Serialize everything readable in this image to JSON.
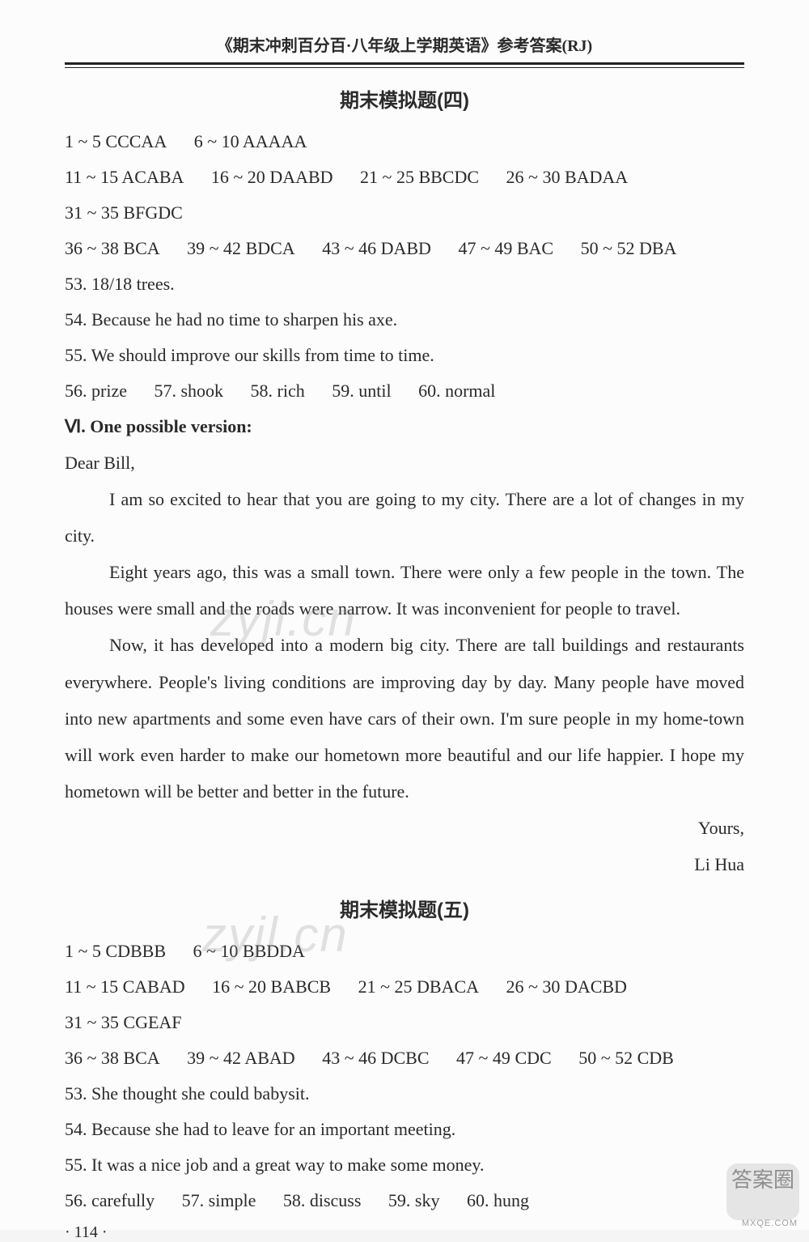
{
  "header": "《期末冲刺百分百·八年级上学期英语》参考答案(RJ)",
  "section4": {
    "title": "期末模拟题(四)",
    "lines": [
      [
        {
          "range": "1 ~ 5",
          "ans": "CCCAA"
        },
        {
          "range": "6 ~ 10",
          "ans": "AAAAA"
        }
      ],
      [
        {
          "range": "11 ~ 15",
          "ans": "ACABA"
        },
        {
          "range": "16 ~ 20",
          "ans": "DAABD"
        },
        {
          "range": "21 ~ 25",
          "ans": "BBCDC"
        },
        {
          "range": "26 ~ 30",
          "ans": "BADAA"
        }
      ],
      [
        {
          "range": "31 ~ 35",
          "ans": "BFGDC"
        }
      ],
      [
        {
          "range": "36 ~ 38",
          "ans": "BCA"
        },
        {
          "range": "39 ~ 42",
          "ans": "BDCA"
        },
        {
          "range": "43 ~ 46",
          "ans": "DABD"
        },
        {
          "range": "47 ~ 49",
          "ans": "BAC"
        },
        {
          "range": "50 ~ 52",
          "ans": "DBA"
        }
      ]
    ],
    "q53": "53. 18/18 trees.",
    "q54": "54. Because he had no time to sharpen his axe.",
    "q55": "55. We should improve our skills from time to time.",
    "words": [
      {
        "n": "56.",
        "w": "prize"
      },
      {
        "n": "57.",
        "w": "shook"
      },
      {
        "n": "58.",
        "w": "rich"
      },
      {
        "n": "59.",
        "w": "until"
      },
      {
        "n": "60.",
        "w": "normal"
      }
    ],
    "writing_label": "Ⅵ. One possible version:",
    "greeting": "Dear Bill,",
    "p1": "I am so excited to hear that you are going to my city. There are a lot of changes in my city.",
    "p2": "Eight years ago, this was a small town. There were only a few people in the town. The houses were small and the roads were narrow. It was inconvenient for people to travel.",
    "p3": "Now, it has developed into a modern big city. There are tall buildings and restaurants everywhere. People's living conditions are improving day by day. Many people have moved into new apartments and some even have cars of their own. I'm sure people in my home-town will work even harder to make our hometown more beautiful and our life happier. I hope my hometown will be better and better in the future.",
    "closing": "Yours,",
    "sign": "Li Hua"
  },
  "section5": {
    "title": "期末模拟题(五)",
    "lines": [
      [
        {
          "range": "1 ~ 5",
          "ans": "CDBBB"
        },
        {
          "range": "6 ~ 10",
          "ans": "BBDDA"
        }
      ],
      [
        {
          "range": "11 ~ 15",
          "ans": "CABAD"
        },
        {
          "range": "16 ~ 20",
          "ans": "BABCB"
        },
        {
          "range": "21 ~ 25",
          "ans": "DBACA"
        },
        {
          "range": "26 ~ 30",
          "ans": "DACBD"
        }
      ],
      [
        {
          "range": "31 ~ 35",
          "ans": "CGEAF"
        }
      ],
      [
        {
          "range": "36 ~ 38",
          "ans": "BCA"
        },
        {
          "range": "39 ~ 42",
          "ans": "ABAD"
        },
        {
          "range": "43 ~ 46",
          "ans": "DCBC"
        },
        {
          "range": "47 ~ 49",
          "ans": "CDC"
        },
        {
          "range": "50 ~ 52",
          "ans": "CDB"
        }
      ]
    ],
    "q53": "53. She thought she could babysit.",
    "q54": "54. Because she had to leave for an important meeting.",
    "q55": "55. It was a nice job and a great way to make some money.",
    "words": [
      {
        "n": "56.",
        "w": "carefully"
      },
      {
        "n": "57.",
        "w": "simple"
      },
      {
        "n": "58.",
        "w": "discuss"
      },
      {
        "n": "59.",
        "w": "sky"
      },
      {
        "n": "60.",
        "w": "hung"
      }
    ]
  },
  "pagenum": "· 114 ·",
  "watermark": "zyjl.cn",
  "badge_top": "答案圈",
  "badge_bottom": "MXQE.COM",
  "style": {
    "page_bg": "#fcfcfc",
    "text_color": "#2a2a2a",
    "body_fontsize": 22,
    "header_fontsize": 20,
    "title_fontsize": 24,
    "line_height": 2.0,
    "watermark_color": "rgba(140,140,140,0.25)",
    "watermark_fontsize": 60
  }
}
